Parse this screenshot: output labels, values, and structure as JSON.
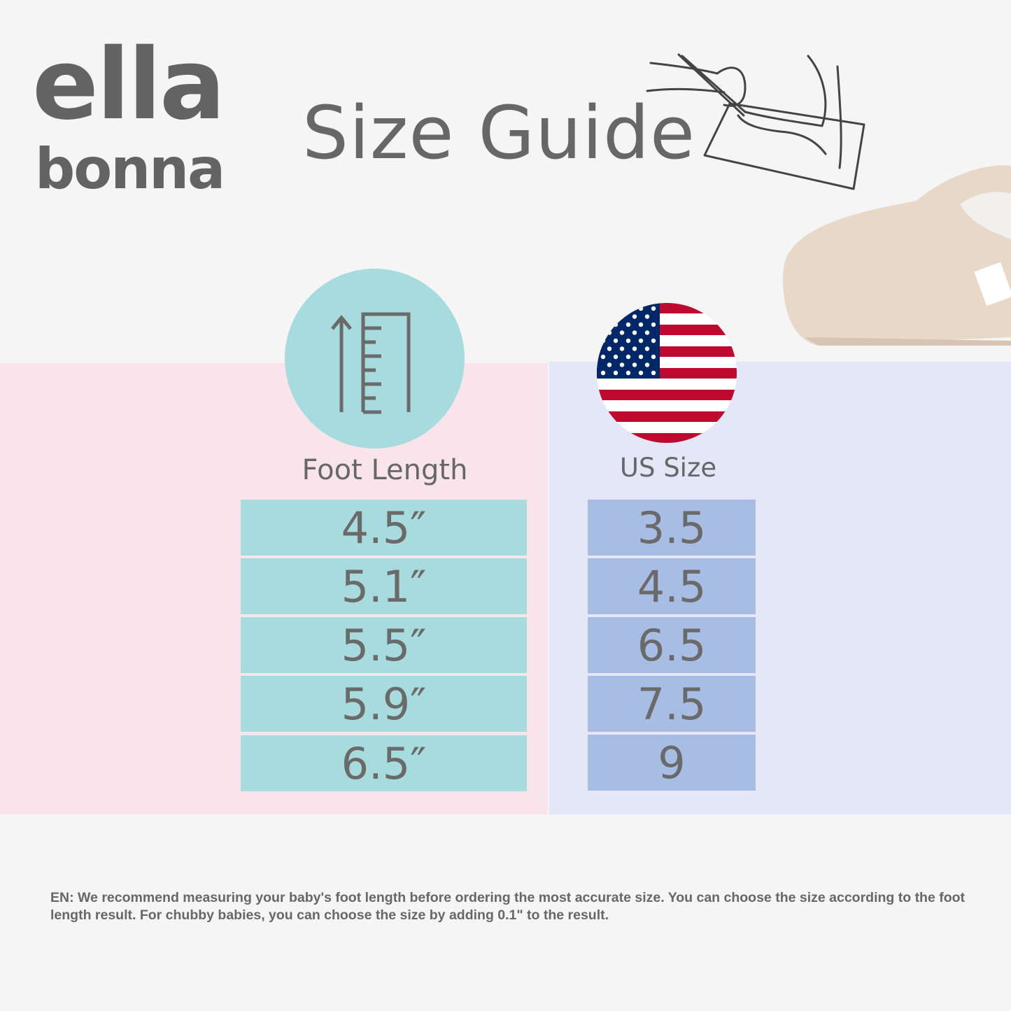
{
  "brand": {
    "line1": "ella",
    "line2": "bonna"
  },
  "title": "Size Guide",
  "icons": {
    "measure": "foot-measuring-drawing-icon",
    "ruler": "ruler-arrow-icon",
    "flag": "us-flag-icon",
    "product": "baby-shoe-photo"
  },
  "columns": {
    "foot_length": {
      "label": "Foot Length",
      "values": [
        "4.5″",
        "5.1″",
        "5.5″",
        "5.9″",
        "6.5″"
      ]
    },
    "us_size": {
      "label": "US Size",
      "values": [
        "3.5",
        "4.5",
        "6.5",
        "7.5",
        "9"
      ]
    }
  },
  "colors": {
    "teal": "#a8dbdd",
    "blue": "#a8bde3",
    "pink_bg": "#f8e4ea",
    "blue_bg": "#e3e7f8"
  },
  "note": "EN: We recommend measuring your baby's foot length before ordering the most accurate size. You can choose the size according to the foot length result. For chubby babies, you can choose the size by adding 0.1\"  to the result."
}
